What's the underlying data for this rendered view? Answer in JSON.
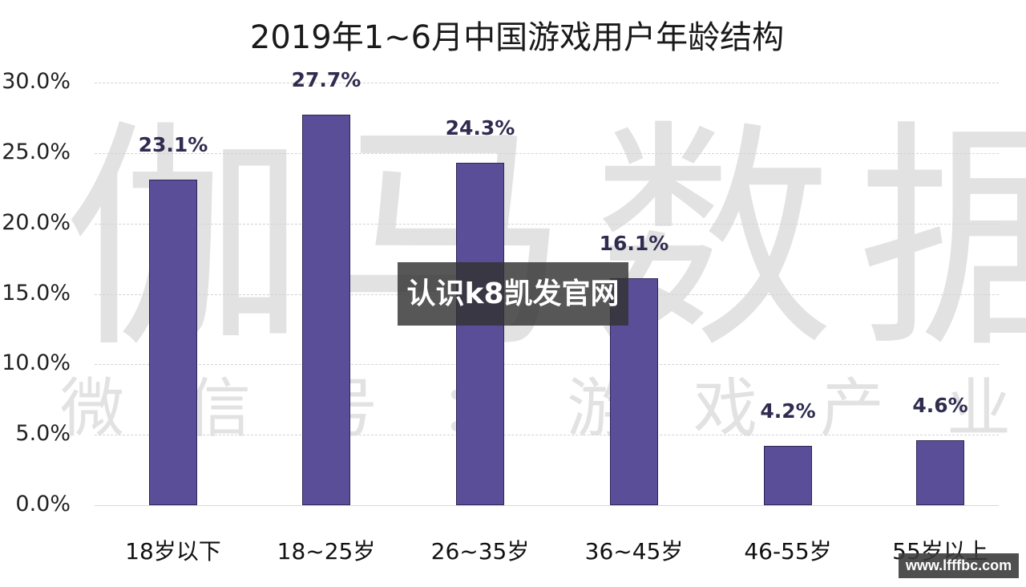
{
  "title": "2019年1~6月中国游戏用户年龄结构",
  "watermarks": {
    "large": "伽马数据",
    "small": "微信号：游戏产业报告"
  },
  "overlay": {
    "banner_text": "认识k8凯发官网",
    "badge_text": "www.lfffbc.com"
  },
  "colors": {
    "bar": "#5b4e98",
    "bar_label": "#2f2c4f",
    "banner_bg": "#323232"
  },
  "chart_data": {
    "type": "bar",
    "title": "2019年1~6月中国游戏用户年龄结构",
    "xlabel": "",
    "ylabel": "",
    "categories": [
      "18岁以下",
      "18~25岁",
      "26~35岁",
      "36~45岁",
      "46-55岁",
      "55岁以上"
    ],
    "values": [
      23.1,
      27.7,
      24.3,
      16.1,
      4.2,
      4.6
    ],
    "value_labels": [
      "23.1%",
      "27.7%",
      "24.3%",
      "16.1%",
      "4.2%",
      "4.6%"
    ],
    "unit": "%",
    "ylim": [
      0,
      30
    ],
    "yticks": [
      "0.0%",
      "5.0%",
      "10.0%",
      "15.0%",
      "20.0%",
      "25.0%",
      "30.0%"
    ],
    "grid": true,
    "legend": null
  }
}
